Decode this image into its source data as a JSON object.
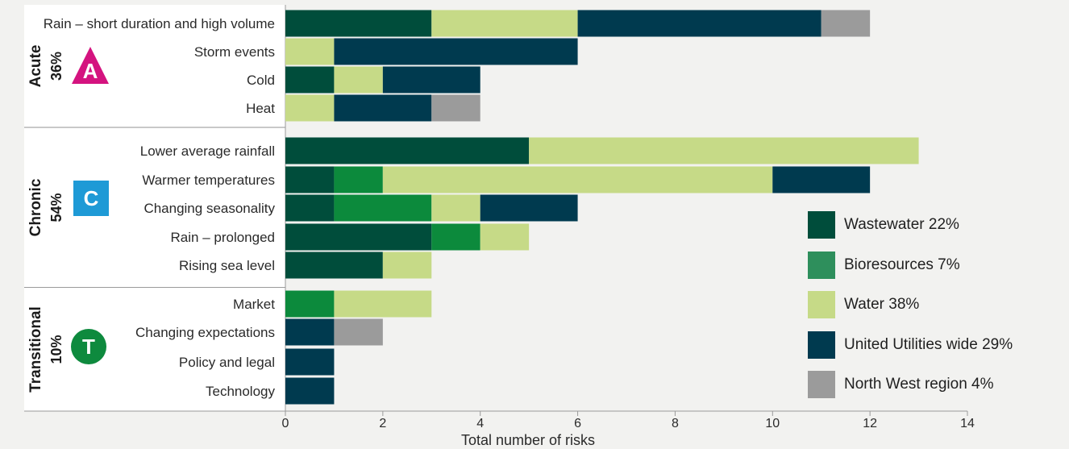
{
  "chart_data": {
    "type": "bar",
    "orientation": "horizontal",
    "stacked": true,
    "xlabel": "Total number of risks",
    "xlim": [
      0,
      14
    ],
    "xticks": [
      0,
      2,
      4,
      6,
      8,
      10,
      12,
      14
    ],
    "groups": [
      {
        "name": "Acute",
        "percent": "36%",
        "badge": "A",
        "badge_color": "#d4137f",
        "badge_shape": "triangle"
      },
      {
        "name": "Chronic",
        "percent": "54%",
        "badge": "C",
        "badge_color": "#1e9ad6",
        "badge_shape": "square"
      },
      {
        "name": "Transitional",
        "percent": "10%",
        "badge": "T",
        "badge_color": "#0e8a3e",
        "badge_shape": "circle"
      }
    ],
    "categories": [
      "Rain – short duration and high volume",
      "Storm events",
      "Cold",
      "Heat",
      "Lower average rainfall",
      "Warmer temperatures",
      "Changing seasonality",
      "Rain – prolonged",
      "Rising sea level",
      "Market",
      "Changing expectations",
      "Policy and legal",
      "Technology"
    ],
    "category_group": [
      0,
      0,
      0,
      0,
      1,
      1,
      1,
      1,
      1,
      2,
      2,
      2,
      2
    ],
    "series": [
      {
        "name": "Wastewater 22%",
        "color": "#004d3b",
        "values": [
          3,
          0,
          1,
          0,
          5,
          1,
          1,
          3,
          2,
          0,
          0,
          0,
          0
        ]
      },
      {
        "name": "Bioresources 7%",
        "color": "#0c8a3c",
        "values": [
          0,
          0,
          0,
          0,
          0,
          1,
          2,
          1,
          0,
          1,
          0,
          0,
          0
        ]
      },
      {
        "name": "Water 38%",
        "color": "#c6da87",
        "values": [
          3,
          1,
          1,
          1,
          8,
          8,
          1,
          1,
          1,
          2,
          0,
          0,
          0
        ]
      },
      {
        "name": "United Utilities wide 29%",
        "color": "#003a4f",
        "values": [
          5,
          5,
          2,
          2,
          0,
          2,
          2,
          0,
          0,
          0,
          1,
          1,
          1
        ]
      },
      {
        "name": "North West region 4%",
        "color": "#9b9b9b",
        "values": [
          1,
          0,
          0,
          1,
          0,
          0,
          0,
          0,
          0,
          0,
          1,
          0,
          0
        ]
      }
    ],
    "legend_placement": "bottom-right",
    "legend_swatch_colors": [
      "#004d3b",
      "#2e8f5c",
      "#c6da87",
      "#003a4f",
      "#9b9b9b"
    ],
    "grid": false
  }
}
